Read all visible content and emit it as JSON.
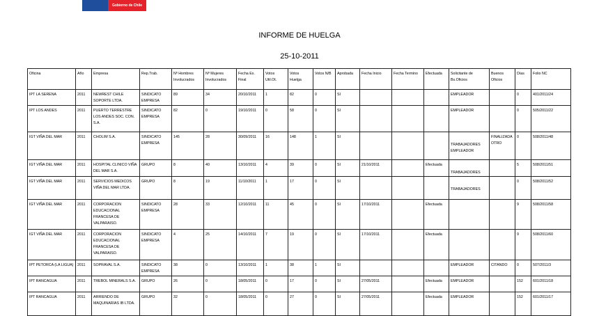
{
  "logo": {
    "text": "Gobierno de Chile",
    "colors": [
      "#1f4e9c",
      "#e3222b"
    ]
  },
  "title": "INFORME DE HUELGA",
  "date": "25-10-2011",
  "columns": [
    "Oficina",
    "Año",
    "Empresa",
    "Rep.Trab.",
    "Nº Hombres Involucrados",
    "Nº Mujeres Involucrados",
    "Fecha Ex. Final",
    "Votos Util.Ot.",
    "Votos Huelga",
    "Votos N/B",
    "Aprobada",
    "Fecha Inicio",
    "Fecha Termino",
    "Efectuada",
    "Solicitante de Bs.Oficios",
    "Buenos Oficios",
    "Días",
    "Folio NC"
  ],
  "rows": [
    [
      "IPT LA SERENA",
      "2011",
      "NEWREST CHILE SOPORTE LTDA.",
      "SINDICATO EMPRESA",
      "89",
      "34",
      "20/10/2011",
      "1",
      "82",
      "0",
      "SI",
      "",
      "",
      "",
      "EMPLEADOR",
      "",
      "0",
      "401/2011/24"
    ],
    [
      "IPT LOS ANDES",
      "2011",
      "PUERTO TERRESTRE LOS ANDES SOC. CON. S.A.",
      "SINDICATO EMPRESA",
      "82",
      "0",
      "19/10/2011",
      "0",
      "58",
      "0",
      "SI",
      "",
      "",
      "",
      "EMPLEADOR",
      "",
      "0",
      "505/2011/22"
    ],
    [
      "IGT VIÑA DEL MAR",
      "2011",
      "CHOLIM S.A.",
      "SINDICATO EMPRESA",
      "145",
      "28",
      "30/09/2011",
      "16",
      "148",
      "1",
      "SI",
      "",
      "",
      "",
      "TRABAJADORES EMPLEADOR",
      "FINALIZADA OTRO",
      "0",
      "508/2011/48"
    ],
    [
      "IGT VIÑA DEL MAR",
      "2011",
      "HOSPITAL CLINICO VIÑA DEL MAR S.A.",
      "GRUPO",
      "8",
      "40",
      "13/10/2011",
      "4",
      "39",
      "0",
      "SI",
      "21/10/2011",
      "",
      "Efectuada",
      "TRABAJADORES",
      "",
      "5",
      "508/2011/51"
    ],
    [
      "IGT VIÑA DEL MAR",
      "2011",
      "SERVICIOS MEDICOS VIÑA DEL MAR LTDA.",
      "GRUPO",
      "8",
      "19",
      "11/10/2011",
      "1",
      "17",
      "0",
      "SI",
      "",
      "",
      "",
      "TRABAJADORES",
      "",
      "0",
      "508/2011/52"
    ],
    [
      "IGT VIÑA DEL MAR",
      "2011",
      "CORPORACION EDUCACIONAL FRANCESA DE VALPARAISO.",
      "SINDICATO EMPRESA",
      "28",
      "33",
      "12/10/2011",
      "11",
      "45",
      "0",
      "SI",
      "17/10/2011",
      "",
      "Efectuada",
      "",
      "",
      "9",
      "508/2011/58"
    ],
    [
      "IGT VIÑA DEL MAR",
      "2011",
      "CORPORACION EDUCACIONAL FRANCESA DE VALPARAISO.",
      "SINDICATO EMPRESA",
      "4",
      "25",
      "14/10/2011",
      "7",
      "19",
      "0",
      "SI",
      "17/10/2011",
      "",
      "Efectuada",
      "",
      "",
      "9",
      "508/2011/60"
    ],
    [
      "IPT PETORCA (LA LIGUA)",
      "2011",
      "SOPRAVAL S.A.",
      "SINDICATO EMPRESA",
      "38",
      "0",
      "13/10/2011",
      "1",
      "38",
      "1",
      "SI",
      "",
      "",
      "",
      "EMPLEADOR",
      "CITANDO",
      "0",
      "507/2011/3"
    ],
    [
      "IPT RANCAGUA",
      "2011",
      "TREBOL MINERALS S.A.",
      "GRUPO",
      "26",
      "0",
      "18/05/2011",
      "0",
      "17",
      "0",
      "SI",
      "27/05/2011",
      "",
      "Efectuada",
      "EMPLEADOR",
      "",
      "152",
      "601/2011/18"
    ],
    [
      "IPT RANCAGUA",
      "2011",
      "ARRIENDO DE MAQUINARIAS IB LTDA.",
      "GRUPO",
      "32",
      "0",
      "18/05/2011",
      "0",
      "27",
      "0",
      "SI",
      "27/05/2011",
      "",
      "Efectuada",
      "EMPLEADOR",
      "",
      "152",
      "601/2011/17"
    ]
  ]
}
